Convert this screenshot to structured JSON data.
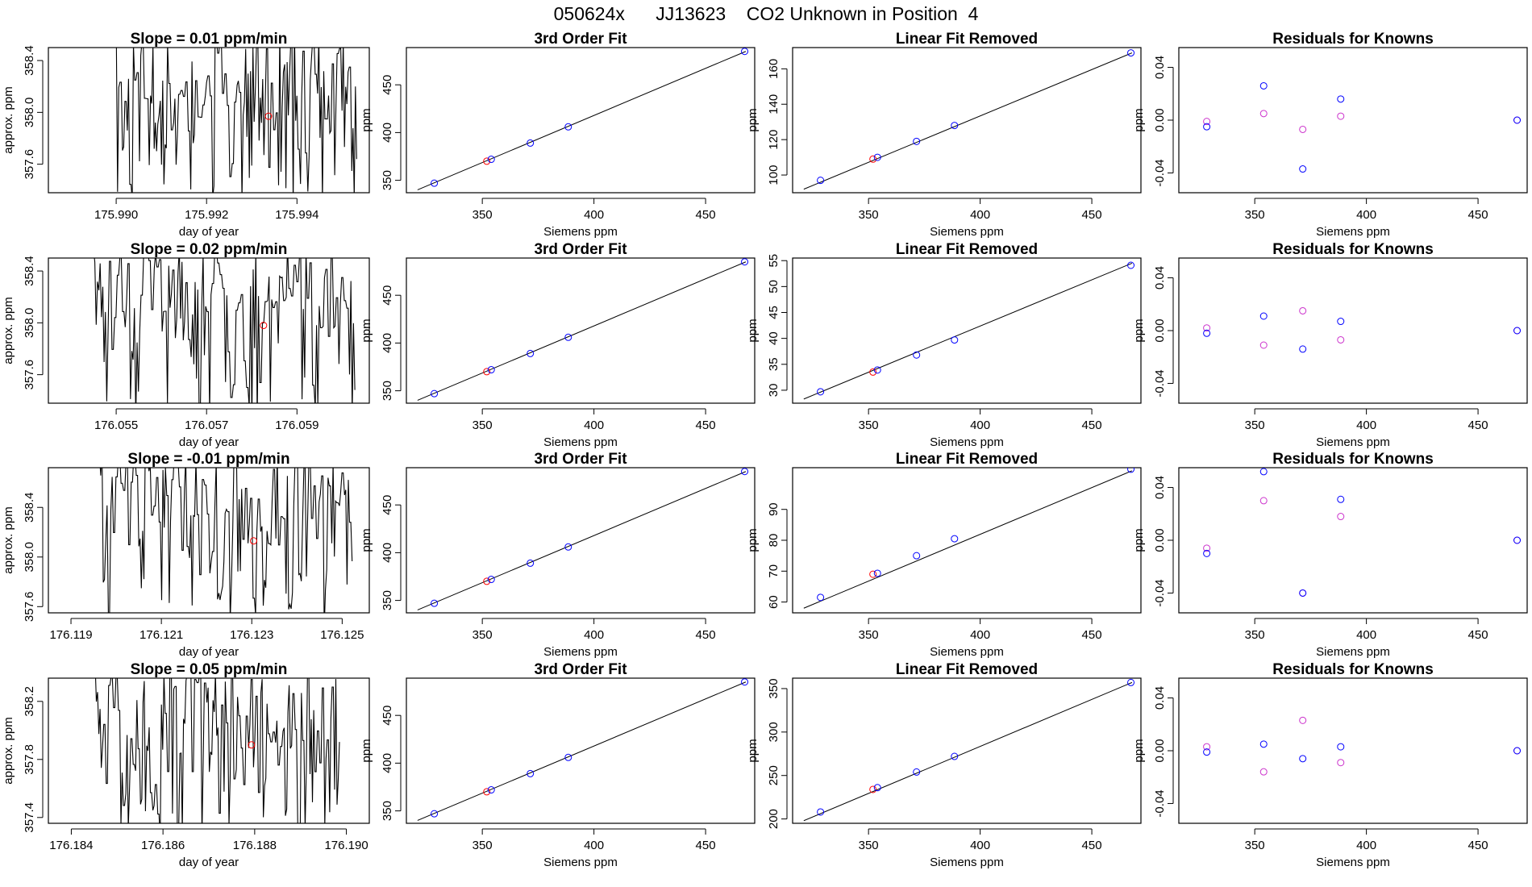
{
  "main_title": "050624x      JJ13623    CO2 Unknown in Position  4",
  "colors": {
    "unknown": "#ff0000",
    "known": "#0000ff",
    "residual_alt": "#cc33cc",
    "line": "#000000"
  },
  "chart_data": [
    {
      "row": 0,
      "timeseries": {
        "type": "line",
        "title": "Slope =  0.01  ppm/min",
        "xlabel": "day of year",
        "ylabel": "approx. ppm",
        "xlim": [
          175.9885,
          175.9956
        ],
        "ylim": [
          357.38,
          358.5
        ],
        "xticks": [
          175.99,
          175.992,
          175.994
        ],
        "xtick_labels": [
          "175.990",
          "175.992",
          "175.994"
        ],
        "yticks": [
          357.6,
          358.0,
          358.4
        ],
        "ytick_labels": [
          "357.6",
          "358.0",
          "358.4"
        ],
        "x_start": 175.98995,
        "x_end": 175.99532,
        "n_points": 200,
        "seed": 11,
        "unknown_point": {
          "x": 175.99337,
          "y": 357.97
        }
      },
      "fit": {
        "type": "scatter",
        "title": "3rd Order Fit",
        "xlabel": "Siemens ppm",
        "ylabel": "ppm",
        "xlim": [
          316,
          472
        ],
        "ylim": [
          337,
          489
        ],
        "xticks": [
          350,
          400,
          450
        ],
        "yticks": [
          350,
          400,
          450
        ],
        "line": [
          [
            321,
            340
          ],
          [
            468,
            485
          ]
        ],
        "known_points": [
          {
            "x": 328.5,
            "y": 347
          },
          {
            "x": 354,
            "y": 372
          },
          {
            "x": 371.5,
            "y": 389
          },
          {
            "x": 388.5,
            "y": 406
          },
          {
            "x": 467.5,
            "y": 485
          }
        ],
        "unknown_point": {
          "x": 352,
          "y": 370
        }
      },
      "linear_removed": {
        "type": "scatter",
        "title": "Linear Fit Removed",
        "xlabel": "Siemens ppm",
        "ylabel": "ppm",
        "xlim": [
          316,
          472
        ],
        "ylim": [
          90,
          172
        ],
        "xticks": [
          350,
          400,
          450
        ],
        "yticks": [
          100,
          120,
          140,
          160
        ],
        "line": [
          [
            321,
            92
          ],
          [
            468,
            169
          ]
        ],
        "known_points": [
          {
            "x": 328.5,
            "y": 97
          },
          {
            "x": 354,
            "y": 110
          },
          {
            "x": 371.5,
            "y": 119
          },
          {
            "x": 388.5,
            "y": 128
          },
          {
            "x": 467.5,
            "y": 169
          }
        ],
        "unknown_point": {
          "x": 352,
          "y": 109
        }
      },
      "residuals": {
        "type": "scatter",
        "title": "Residuals for Knowns",
        "xlabel": "Siemens ppm",
        "ylabel": "ppm",
        "xlim": [
          316,
          472
        ],
        "ylim": [
          -0.055,
          0.055
        ],
        "xticks": [
          350,
          400,
          450
        ],
        "yticks": [
          -0.04,
          0.0,
          0.04
        ],
        "ytick_labels": [
          "-0.04",
          "0.00",
          "0.04"
        ],
        "primary": [
          {
            "x": 328.5,
            "y": -0.005
          },
          {
            "x": 354,
            "y": 0.026
          },
          {
            "x": 371.5,
            "y": -0.037
          },
          {
            "x": 388.5,
            "y": 0.016
          },
          {
            "x": 467.5,
            "y": 0.0
          }
        ],
        "secondary": [
          {
            "x": 328.5,
            "y": -0.001
          },
          {
            "x": 354,
            "y": 0.005
          },
          {
            "x": 371.5,
            "y": -0.007
          },
          {
            "x": 388.5,
            "y": 0.003
          },
          {
            "x": 467.5,
            "y": 0.0
          }
        ]
      }
    },
    {
      "row": 1,
      "timeseries": {
        "type": "line",
        "title": "Slope =  0.02  ppm/min",
        "xlabel": "day of year",
        "ylabel": "approx. ppm",
        "xlim": [
          176.0535,
          176.0606
        ],
        "ylim": [
          357.38,
          358.5
        ],
        "xticks": [
          176.055,
          176.057,
          176.059
        ],
        "xtick_labels": [
          "176.055",
          "176.057",
          "176.059"
        ],
        "yticks": [
          357.6,
          358.0,
          358.4
        ],
        "ytick_labels": [
          "357.6",
          "358.0",
          "358.4"
        ],
        "x_start": 176.05447,
        "x_end": 176.06028,
        "n_points": 200,
        "seed": 23,
        "unknown_point": {
          "x": 176.05826,
          "y": 357.98
        }
      },
      "fit": {
        "type": "scatter",
        "title": "3rd Order Fit",
        "xlabel": "Siemens ppm",
        "ylabel": "ppm",
        "xlim": [
          316,
          472
        ],
        "ylim": [
          337,
          489
        ],
        "xticks": [
          350,
          400,
          450
        ],
        "yticks": [
          350,
          400,
          450
        ],
        "line": [
          [
            321,
            340
          ],
          [
            468,
            485
          ]
        ],
        "known_points": [
          {
            "x": 328.5,
            "y": 347
          },
          {
            "x": 354,
            "y": 372
          },
          {
            "x": 371.5,
            "y": 389
          },
          {
            "x": 388.5,
            "y": 406
          },
          {
            "x": 467.5,
            "y": 485
          }
        ],
        "unknown_point": {
          "x": 352,
          "y": 370
        }
      },
      "linear_removed": {
        "type": "scatter",
        "title": "Linear Fit Removed",
        "xlabel": "Siemens ppm",
        "ylabel": "ppm",
        "xlim": [
          316,
          472
        ],
        "ylim": [
          27.5,
          55.5
        ],
        "xticks": [
          350,
          400,
          450
        ],
        "yticks": [
          30,
          35,
          40,
          45,
          50,
          55
        ],
        "line": [
          [
            321,
            28.3
          ],
          [
            468,
            54.5
          ]
        ],
        "known_points": [
          {
            "x": 328.5,
            "y": 29.7
          },
          {
            "x": 354,
            "y": 33.9
          },
          {
            "x": 371.5,
            "y": 36.8
          },
          {
            "x": 388.5,
            "y": 39.7
          },
          {
            "x": 467.5,
            "y": 54.1
          }
        ],
        "unknown_point": {
          "x": 352,
          "y": 33.5
        }
      },
      "residuals": {
        "type": "scatter",
        "title": "Residuals for Knowns",
        "xlabel": "Siemens ppm",
        "ylabel": "ppm",
        "xlim": [
          316,
          472
        ],
        "ylim": [
          -0.055,
          0.055
        ],
        "xticks": [
          350,
          400,
          450
        ],
        "yticks": [
          -0.04,
          0.0,
          0.04
        ],
        "ytick_labels": [
          "-0.04",
          "0.00",
          "0.04"
        ],
        "primary": [
          {
            "x": 328.5,
            "y": -0.002
          },
          {
            "x": 354,
            "y": 0.011
          },
          {
            "x": 371.5,
            "y": -0.014
          },
          {
            "x": 388.5,
            "y": 0.007
          },
          {
            "x": 467.5,
            "y": 0.0
          }
        ],
        "secondary": [
          {
            "x": 328.5,
            "y": 0.002
          },
          {
            "x": 354,
            "y": -0.011
          },
          {
            "x": 371.5,
            "y": 0.015
          },
          {
            "x": 388.5,
            "y": -0.007
          },
          {
            "x": 467.5,
            "y": 0.0
          }
        ]
      }
    },
    {
      "row": 2,
      "timeseries": {
        "type": "line",
        "title": "Slope =  -0.01  ppm/min",
        "xlabel": "day of year",
        "ylabel": "approx. ppm",
        "xlim": [
          176.1185,
          176.1256
        ],
        "ylim": [
          357.55,
          358.72
        ],
        "xticks": [
          176.119,
          176.121,
          176.123,
          176.125
        ],
        "xtick_labels": [
          "176.119",
          "176.121",
          "176.123",
          "176.125"
        ],
        "yticks": [
          357.6,
          358.0,
          358.4
        ],
        "ytick_labels": [
          "357.6",
          "358.0",
          "358.4"
        ],
        "x_start": 176.11963,
        "x_end": 176.12522,
        "n_points": 200,
        "seed": 37,
        "unknown_point": {
          "x": 176.12304,
          "y": 358.13
        }
      },
      "fit": {
        "type": "scatter",
        "title": "3rd Order Fit",
        "xlabel": "Siemens ppm",
        "ylabel": "ppm",
        "xlim": [
          316,
          472
        ],
        "ylim": [
          337,
          489
        ],
        "xticks": [
          350,
          400,
          450
        ],
        "yticks": [
          350,
          400,
          450
        ],
        "line": [
          [
            321,
            340
          ],
          [
            468,
            485
          ]
        ],
        "known_points": [
          {
            "x": 328.5,
            "y": 347
          },
          {
            "x": 354,
            "y": 372
          },
          {
            "x": 371.5,
            "y": 389
          },
          {
            "x": 388.5,
            "y": 406
          },
          {
            "x": 467.5,
            "y": 485
          }
        ],
        "unknown_point": {
          "x": 352,
          "y": 370
        }
      },
      "linear_removed": {
        "type": "scatter",
        "title": "Linear Fit Removed",
        "xlabel": "Siemens ppm",
        "ylabel": "ppm",
        "xlim": [
          316,
          472
        ],
        "ylim": [
          56.5,
          103.5
        ],
        "xticks": [
          350,
          400,
          450
        ],
        "yticks": [
          60,
          70,
          80,
          90
        ],
        "line": [
          [
            321,
            58
          ],
          [
            468,
            102.5
          ]
        ],
        "known_points": [
          {
            "x": 328.5,
            "y": 61.5
          },
          {
            "x": 354,
            "y": 69.3
          },
          {
            "x": 371.5,
            "y": 75
          },
          {
            "x": 388.5,
            "y": 80.5
          },
          {
            "x": 467.5,
            "y": 103
          }
        ],
        "unknown_point": {
          "x": 352,
          "y": 69
        }
      },
      "residuals": {
        "type": "scatter",
        "title": "Residuals for Knowns",
        "xlabel": "Siemens ppm",
        "ylabel": "ppm",
        "xlim": [
          316,
          472
        ],
        "ylim": [
          -0.055,
          0.055
        ],
        "xticks": [
          350,
          400,
          450
        ],
        "yticks": [
          -0.04,
          0.0,
          0.04
        ],
        "ytick_labels": [
          "-0.04",
          "0.00",
          "0.04"
        ],
        "primary": [
          {
            "x": 328.5,
            "y": -0.01
          },
          {
            "x": 354,
            "y": 0.052
          },
          {
            "x": 371.5,
            "y": -0.04
          },
          {
            "x": 388.5,
            "y": 0.031
          },
          {
            "x": 467.5,
            "y": 0.0
          }
        ],
        "secondary": [
          {
            "x": 328.5,
            "y": -0.006
          },
          {
            "x": 354,
            "y": 0.03
          },
          {
            "x": 371.5,
            "y": -0.04
          },
          {
            "x": 388.5,
            "y": 0.018
          },
          {
            "x": 467.5,
            "y": 0.0
          }
        ]
      }
    },
    {
      "row": 3,
      "timeseries": {
        "type": "line",
        "title": "Slope =  0.05  ppm/min",
        "xlabel": "day of year",
        "ylabel": "approx. ppm",
        "xlim": [
          176.1835,
          176.1905
        ],
        "ylim": [
          357.36,
          358.36
        ],
        "xticks": [
          176.184,
          176.186,
          176.188,
          176.19
        ],
        "xtick_labels": [
          "176.184",
          "176.186",
          "176.188",
          "176.190"
        ],
        "yticks": [
          357.4,
          357.8,
          358.2
        ],
        "ytick_labels": [
          "357.4",
          "357.8",
          "358.2"
        ],
        "x_start": 176.18452,
        "x_end": 176.18985,
        "n_points": 200,
        "seed": 51,
        "unknown_point": {
          "x": 176.18793,
          "y": 357.9
        }
      },
      "fit": {
        "type": "scatter",
        "title": "3rd Order Fit",
        "xlabel": "Siemens ppm",
        "ylabel": "ppm",
        "xlim": [
          316,
          472
        ],
        "ylim": [
          337,
          489
        ],
        "xticks": [
          350,
          400,
          450
        ],
        "yticks": [
          350,
          400,
          450
        ],
        "line": [
          [
            321,
            340
          ],
          [
            468,
            485
          ]
        ],
        "known_points": [
          {
            "x": 328.5,
            "y": 347
          },
          {
            "x": 354,
            "y": 372
          },
          {
            "x": 371.5,
            "y": 389
          },
          {
            "x": 388.5,
            "y": 406
          },
          {
            "x": 467.5,
            "y": 485
          }
        ],
        "unknown_point": {
          "x": 352,
          "y": 370
        }
      },
      "linear_removed": {
        "type": "scatter",
        "title": "Linear Fit Removed",
        "xlabel": "Siemens ppm",
        "ylabel": "ppm",
        "xlim": [
          316,
          472
        ],
        "ylim": [
          195,
          362
        ],
        "xticks": [
          350,
          400,
          450
        ],
        "yticks": [
          200,
          250,
          300,
          350
        ],
        "line": [
          [
            321,
            198
          ],
          [
            468,
            357
          ]
        ],
        "known_points": [
          {
            "x": 328.5,
            "y": 208
          },
          {
            "x": 354,
            "y": 236
          },
          {
            "x": 371.5,
            "y": 254
          },
          {
            "x": 388.5,
            "y": 272
          },
          {
            "x": 467.5,
            "y": 357
          }
        ],
        "unknown_point": {
          "x": 352,
          "y": 234
        }
      },
      "residuals": {
        "type": "scatter",
        "title": "Residuals for Knowns",
        "xlabel": "Siemens ppm",
        "ylabel": "ppm",
        "xlim": [
          316,
          472
        ],
        "ylim": [
          -0.055,
          0.055
        ],
        "xticks": [
          350,
          400,
          450
        ],
        "yticks": [
          -0.04,
          0.0,
          0.04
        ],
        "ytick_labels": [
          "-0.04",
          "0.00",
          "0.04"
        ],
        "primary": [
          {
            "x": 328.5,
            "y": -0.001
          },
          {
            "x": 354,
            "y": 0.005
          },
          {
            "x": 371.5,
            "y": -0.006
          },
          {
            "x": 388.5,
            "y": 0.003
          },
          {
            "x": 467.5,
            "y": 0.0
          }
        ],
        "secondary": [
          {
            "x": 328.5,
            "y": 0.003
          },
          {
            "x": 354,
            "y": -0.016
          },
          {
            "x": 371.5,
            "y": 0.023
          },
          {
            "x": 388.5,
            "y": -0.009
          },
          {
            "x": 467.5,
            "y": 0.0
          }
        ]
      }
    }
  ]
}
